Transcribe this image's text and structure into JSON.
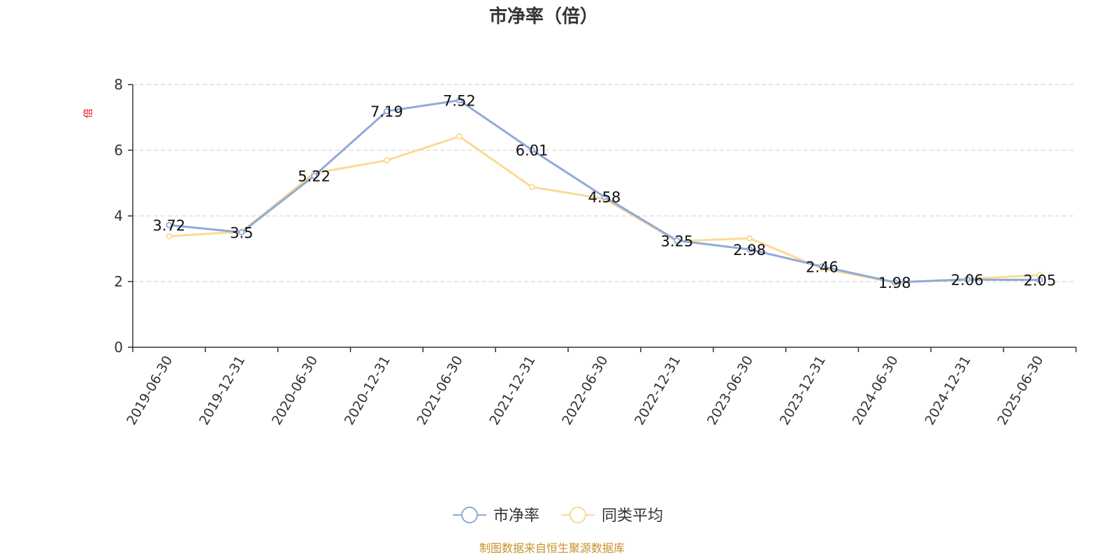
{
  "chart_data": {
    "type": "line",
    "title": "市净率（倍）",
    "y_unit": "倍",
    "ylim": [
      0,
      8
    ],
    "y_ticks": [
      0,
      2,
      4,
      6,
      8
    ],
    "grid": true,
    "legend_position": "bottom",
    "categories": [
      "2019-06-30",
      "2019-12-31",
      "2020-06-30",
      "2020-12-31",
      "2021-06-30",
      "2021-12-31",
      "2022-06-30",
      "2022-12-31",
      "2023-06-30",
      "2023-12-31",
      "2024-06-30",
      "2024-12-31",
      "2025-06-30"
    ],
    "series": [
      {
        "name": "市净率",
        "color": "#8eaad8",
        "values": [
          3.72,
          3.5,
          5.22,
          7.19,
          7.52,
          6.01,
          4.58,
          3.25,
          2.98,
          2.46,
          1.98,
          2.06,
          2.05
        ],
        "labels": [
          "3.72",
          "3.5",
          "5.22",
          "7.19",
          "7.52",
          "6.01",
          "4.58",
          "3.25",
          "2.98",
          "2.46",
          "1.98",
          "2.06",
          "2.05"
        ]
      },
      {
        "name": "同类平均",
        "color": "#fcd995",
        "values": [
          3.38,
          3.52,
          5.3,
          5.69,
          6.42,
          4.88,
          4.52,
          3.23,
          3.32,
          2.4,
          1.97,
          2.08,
          2.2
        ]
      }
    ],
    "source": "制图数据来自恒生聚源数据库"
  }
}
